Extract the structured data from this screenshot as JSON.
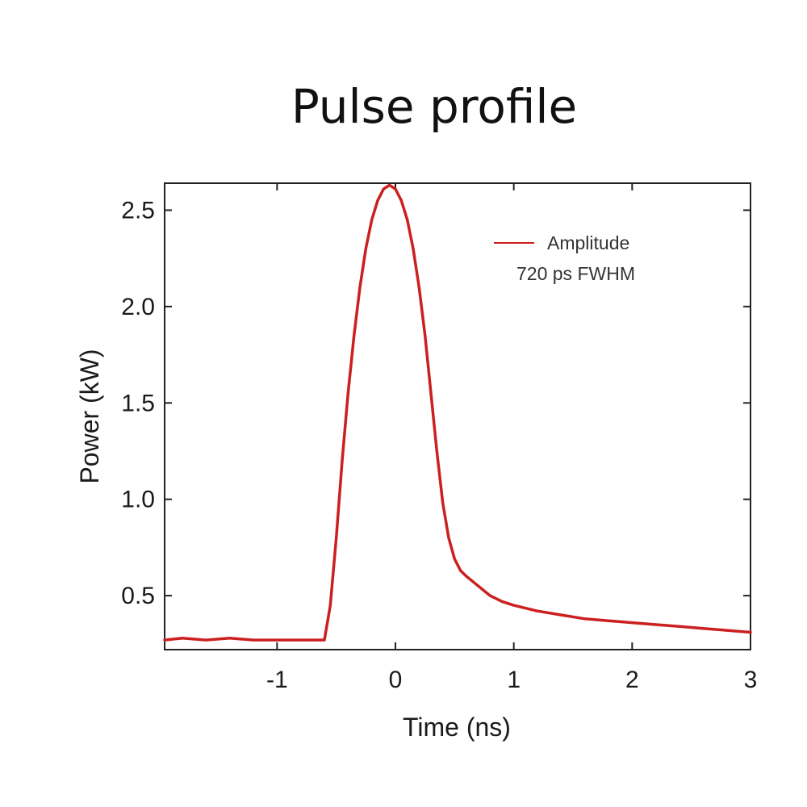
{
  "chart_data": {
    "type": "line",
    "title": "Pulse profile",
    "xlabel": "Time (ns)",
    "ylabel": "Power (kW)",
    "xlim": [
      -1.95,
      3.0
    ],
    "ylim": [
      0.22,
      2.64
    ],
    "xticks": [
      -1,
      0,
      1,
      2,
      3
    ],
    "xtick_labels": [
      "-1",
      "0",
      "1",
      "2",
      "3"
    ],
    "yticks": [
      0.5,
      1.0,
      1.5,
      2.0,
      2.5
    ],
    "ytick_labels": [
      "0.5",
      "1.0",
      "1.5",
      "2.0",
      "2.5"
    ],
    "grid": false,
    "legend": {
      "placement": "top-right",
      "entries": [
        {
          "label_line1": "Amplitude",
          "label_line2": "720 ps FWHM",
          "color": "#cc1f1f"
        }
      ]
    },
    "series": [
      {
        "name": "Amplitude",
        "color": "#cc1f1f",
        "x": [
          -1.95,
          -1.8,
          -1.6,
          -1.4,
          -1.2,
          -1.0,
          -0.8,
          -0.65,
          -0.6,
          -0.55,
          -0.5,
          -0.45,
          -0.4,
          -0.35,
          -0.3,
          -0.25,
          -0.2,
          -0.15,
          -0.1,
          -0.05,
          0.0,
          0.05,
          0.1,
          0.15,
          0.2,
          0.25,
          0.3,
          0.35,
          0.4,
          0.45,
          0.5,
          0.55,
          0.6,
          0.7,
          0.8,
          0.9,
          1.0,
          1.2,
          1.4,
          1.6,
          1.8,
          2.0,
          2.2,
          2.4,
          2.6,
          2.8,
          3.0
        ],
        "y": [
          0.27,
          0.28,
          0.27,
          0.28,
          0.27,
          0.27,
          0.27,
          0.27,
          0.27,
          0.45,
          0.8,
          1.2,
          1.55,
          1.85,
          2.1,
          2.3,
          2.45,
          2.55,
          2.61,
          2.63,
          2.61,
          2.55,
          2.45,
          2.3,
          2.1,
          1.85,
          1.55,
          1.25,
          0.98,
          0.8,
          0.69,
          0.63,
          0.6,
          0.55,
          0.5,
          0.47,
          0.45,
          0.42,
          0.4,
          0.38,
          0.37,
          0.36,
          0.35,
          0.34,
          0.33,
          0.32,
          0.31
        ]
      }
    ]
  }
}
